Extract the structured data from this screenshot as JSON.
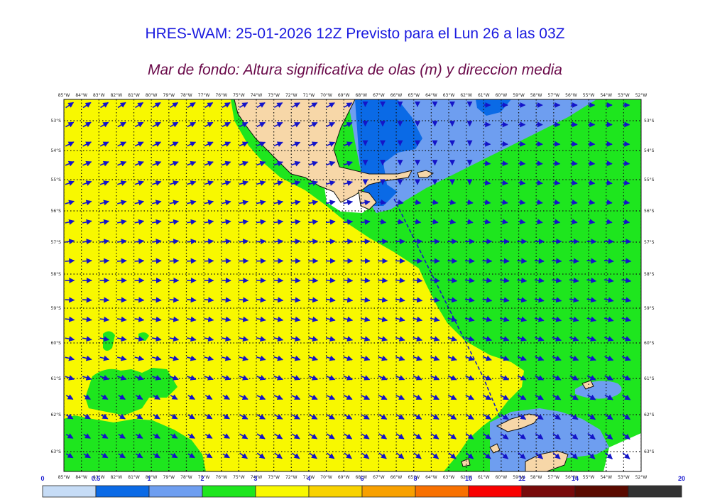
{
  "title": "HRES-WAM: 25-01-2026 12Z Previsto para el Lun 26 a las 03Z",
  "subtitle": "Mar de fondo: Altura significativa de olas (m) y direccion media",
  "lon_labels": [
    "85°W",
    "84°W",
    "83°W",
    "82°W",
    "81°W",
    "80°W",
    "79°W",
    "78°W",
    "77°W",
    "76°W",
    "75°W",
    "74°W",
    "73°W",
    "72°W",
    "71°W",
    "70°W",
    "69°W",
    "68°W",
    "67°W",
    "66°W",
    "65°W",
    "64°W",
    "63°W",
    "62°W",
    "61°W",
    "60°W",
    "59°W",
    "58°W",
    "57°W",
    "56°W",
    "55°W",
    "54°W",
    "53°W",
    "52°W"
  ],
  "lat_labels": [
    "53°S",
    "54°S",
    "55°S",
    "56°S",
    "57°S",
    "58°S",
    "59°S",
    "60°S",
    "61°S",
    "62°S",
    "63°S"
  ],
  "colorbar": {
    "ticks": [
      "0",
      "0.5",
      "1",
      "2",
      "3",
      "4",
      "6",
      "8",
      "10",
      "12",
      "14",
      "20"
    ],
    "colors": [
      "#c6dcf6",
      "#0a6ae6",
      "#6e9ef0",
      "#1ee61e",
      "#f8f800",
      "#f8d200",
      "#f8a000",
      "#f87000",
      "#f80000",
      "#780a0a",
      "#5a0a00",
      "#323232"
    ]
  },
  "palette": {
    "land": "#f7d7a8",
    "ice": "#ffffff",
    "arrow": "#1414c8",
    "grid": "#111111"
  }
}
